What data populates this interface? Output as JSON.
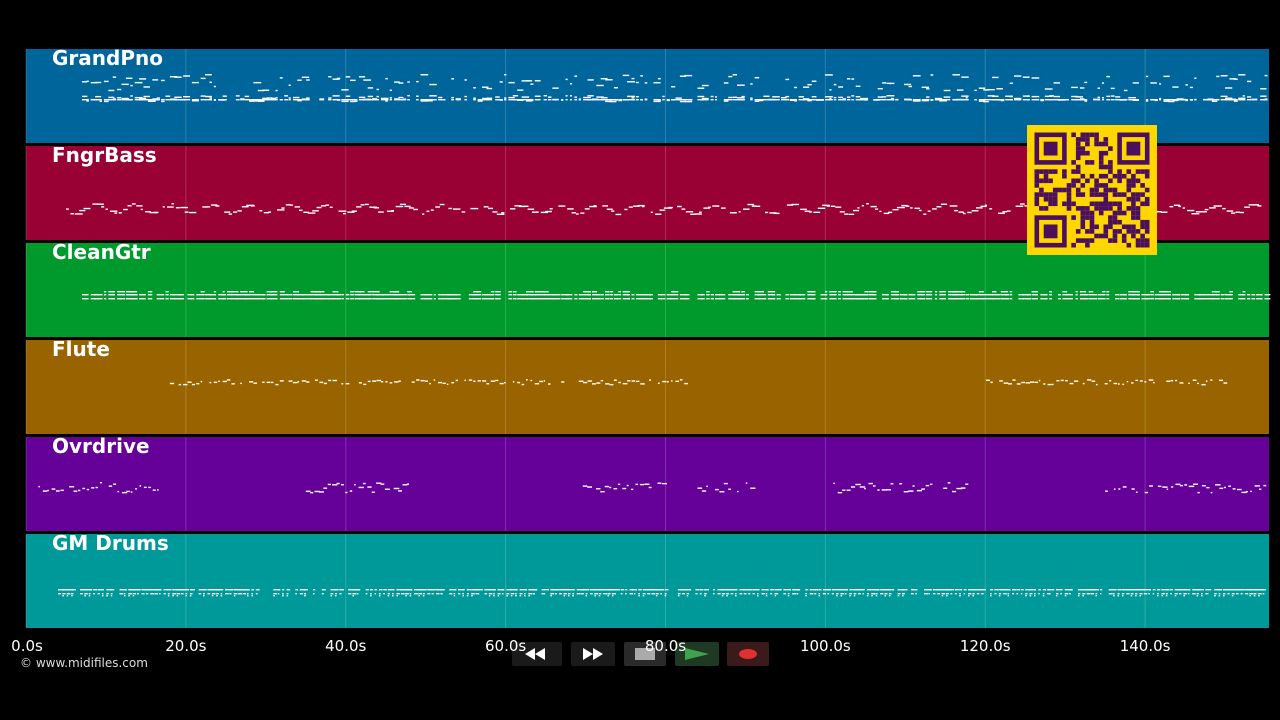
{
  "tracks": [
    {
      "name": "GrandPno",
      "color": "#00659a",
      "pattern": "piano"
    },
    {
      "name": "FngrBass",
      "color": "#990033",
      "pattern": "bass"
    },
    {
      "name": "CleanGtr",
      "color": "#00992b",
      "pattern": "guitar"
    },
    {
      "name": "Flute",
      "color": "#996300",
      "pattern": "flute"
    },
    {
      "name": "Ovrdrive",
      "color": "#650099",
      "pattern": "overdrive"
    },
    {
      "name": "GM Drums",
      "color": "#009999",
      "pattern": "drums"
    }
  ],
  "timeline": {
    "duration_seconds": 155.5,
    "ticks": [
      {
        "value": 0,
        "label": "0.0s"
      },
      {
        "value": 20,
        "label": "20.0s"
      },
      {
        "value": 40,
        "label": "40.0s"
      },
      {
        "value": 60,
        "label": "60.0s"
      },
      {
        "value": 80,
        "label": "80.0s"
      },
      {
        "value": 100,
        "label": "100.0s"
      },
      {
        "value": 120,
        "label": "120.0s"
      },
      {
        "value": 140,
        "label": "140.0s"
      }
    ]
  },
  "copyright": "© www.midifiles.com",
  "transport": {
    "rewind_icon": "rewind-icon",
    "forward_icon": "fast-forward-icon",
    "stop_icon": "stop-icon",
    "play_icon": "play-icon",
    "record_icon": "record-icon",
    "play_color": "#3fa34d",
    "record_color": "#e03030"
  },
  "qr_color": "#ffd700",
  "qr_module_color": "#4b0f5c"
}
